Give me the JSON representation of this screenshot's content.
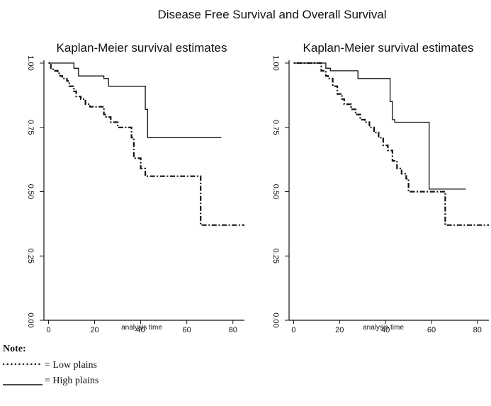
{
  "title": "Disease Free Survival and Overall Survival",
  "note": {
    "heading": "Note:",
    "low_label": "= Low plains",
    "high_label": "= High plains"
  },
  "chart_data": [
    {
      "type": "line",
      "title": "Kaplan-Meier survival estimates",
      "xlabel": "analysis time",
      "ylabel": "",
      "xlim": [
        -2,
        85
      ],
      "ylim": [
        0,
        1
      ],
      "xticks": [
        "0",
        "20",
        "40",
        "60",
        "80"
      ],
      "yticks": [
        "0.00",
        "0.25",
        "0.50",
        "0.75",
        "1.00"
      ],
      "grid": false,
      "series": [
        {
          "name": "Low plains",
          "style": "dotted-dash",
          "x": [
            0,
            1,
            2,
            4,
            5,
            6,
            8,
            9,
            11,
            12,
            14,
            16,
            18,
            24,
            25,
            27,
            30,
            36,
            37,
            40,
            42,
            66,
            85
          ],
          "y": [
            1.0,
            0.98,
            0.97,
            0.96,
            0.95,
            0.94,
            0.93,
            0.91,
            0.89,
            0.87,
            0.86,
            0.84,
            0.83,
            0.8,
            0.79,
            0.77,
            0.75,
            0.71,
            0.63,
            0.59,
            0.56,
            0.37,
            0.37
          ]
        },
        {
          "name": "High plains",
          "style": "solid",
          "x": [
            0,
            11,
            13,
            24,
            26,
            42,
            43,
            75
          ],
          "y": [
            1.0,
            0.98,
            0.95,
            0.94,
            0.91,
            0.82,
            0.71,
            0.71
          ]
        }
      ]
    },
    {
      "type": "line",
      "title": "Kaplan-Meier survival estimates",
      "xlabel": "analysis time",
      "ylabel": "",
      "xlim": [
        -2,
        85
      ],
      "ylim": [
        0,
        1
      ],
      "xticks": [
        "0",
        "20",
        "40",
        "60",
        "80"
      ],
      "yticks": [
        "0.00",
        "0.25",
        "0.50",
        "0.75",
        "1.00"
      ],
      "grid": false,
      "series": [
        {
          "name": "Low plains",
          "style": "dotted-dash",
          "x": [
            0,
            12,
            14,
            15,
            17,
            19,
            21,
            22,
            25,
            27,
            29,
            31,
            33,
            35,
            37,
            39,
            41,
            43,
            45,
            47,
            49,
            50,
            66,
            85
          ],
          "y": [
            1.0,
            0.97,
            0.95,
            0.94,
            0.91,
            0.88,
            0.86,
            0.84,
            0.82,
            0.8,
            0.78,
            0.77,
            0.75,
            0.73,
            0.71,
            0.68,
            0.66,
            0.62,
            0.59,
            0.57,
            0.55,
            0.5,
            0.37,
            0.37
          ]
        },
        {
          "name": "High plains",
          "style": "solid",
          "x": [
            0,
            14,
            16,
            28,
            30,
            42,
            43,
            44,
            58,
            59,
            75
          ],
          "y": [
            1.0,
            0.98,
            0.97,
            0.94,
            0.94,
            0.85,
            0.78,
            0.77,
            0.77,
            0.51,
            0.51
          ]
        }
      ]
    }
  ]
}
